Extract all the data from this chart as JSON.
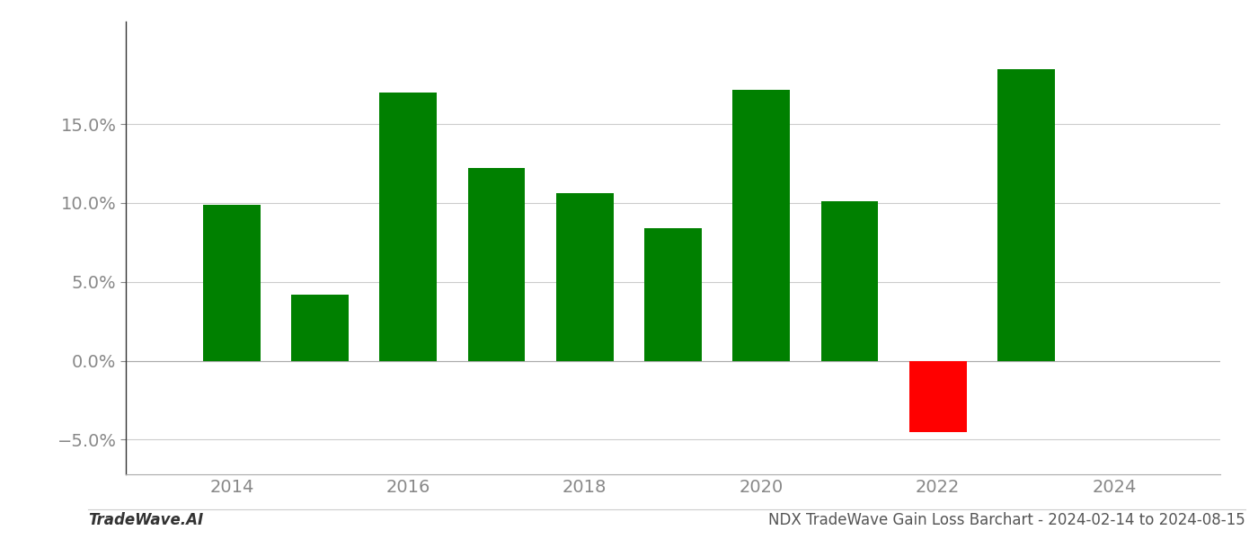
{
  "years": [
    2014,
    2015,
    2016,
    2017,
    2018,
    2019,
    2020,
    2021,
    2022,
    2023
  ],
  "values": [
    0.099,
    0.042,
    0.17,
    0.122,
    0.106,
    0.084,
    0.172,
    0.101,
    -0.045,
    0.185
  ],
  "bar_colors": [
    "#008000",
    "#008000",
    "#008000",
    "#008000",
    "#008000",
    "#008000",
    "#008000",
    "#008000",
    "#ff0000",
    "#008000"
  ],
  "yticks": [
    -0.05,
    0.0,
    0.05,
    0.1,
    0.15
  ],
  "ytick_labels": [
    "−5.0%",
    "0.0%",
    "5.0%",
    "10.0%",
    "15.0%"
  ],
  "xticks": [
    2014,
    2016,
    2018,
    2020,
    2022,
    2024
  ],
  "ylim": [
    -0.072,
    0.215
  ],
  "xlim": [
    2012.8,
    2025.2
  ],
  "footer_left": "TradeWave.AI",
  "footer_right": "NDX TradeWave Gain Loss Barchart - 2024-02-14 to 2024-08-15",
  "background_color": "#ffffff",
  "bar_width": 0.65,
  "grid_color": "#cccccc",
  "tick_label_color": "#888888",
  "footer_fontsize": 12,
  "tick_fontsize": 14,
  "left_spine_color": "#333333",
  "bottom_spine_color": "#aaaaaa"
}
